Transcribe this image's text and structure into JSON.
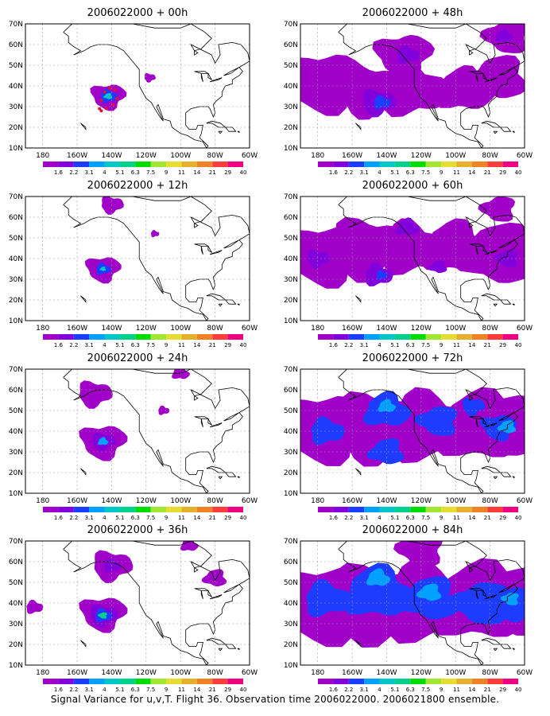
{
  "axes": {
    "x_ticks": [
      "180",
      "160W",
      "140W",
      "120W",
      "100W",
      "80W",
      "60W"
    ],
    "y_ticks": [
      "70N",
      "60N",
      "50N",
      "40N",
      "30N",
      "20N",
      "10N"
    ],
    "lon_range": [
      -190,
      -60
    ],
    "lat_range": [
      10,
      70
    ]
  },
  "colorbar": {
    "labels": [
      "1.6",
      "2.2",
      "3.1",
      "4",
      "5.1",
      "6.3",
      "7.5",
      "9",
      "11",
      "14",
      "21",
      "29",
      "40"
    ],
    "colors": [
      "#a000c8",
      "#8200dc",
      "#1e3cff",
      "#00a0ff",
      "#00c8c8",
      "#00d28c",
      "#00dc00",
      "#a0e632",
      "#e6dc32",
      "#e6af2d",
      "#f08228",
      "#fa3c3c",
      "#f00082"
    ]
  },
  "panels": [
    {
      "id": "p00",
      "title": "2006022000 + 00h"
    },
    {
      "id": "p48",
      "title": "2006022000 + 48h"
    },
    {
      "id": "p12",
      "title": "2006022000 + 12h"
    },
    {
      "id": "p60",
      "title": "2006022000 + 60h"
    },
    {
      "id": "p24",
      "title": "2006022000 + 24h"
    },
    {
      "id": "p72",
      "title": "2006022000 + 72h"
    },
    {
      "id": "p36",
      "title": "2006022000 + 36h"
    },
    {
      "id": "p84",
      "title": "2006022000 + 84h"
    }
  ],
  "caption": "Signal Variance for u,v,T. Flight 36. Observation time 2006022000. 2006021800 ensemble."
}
